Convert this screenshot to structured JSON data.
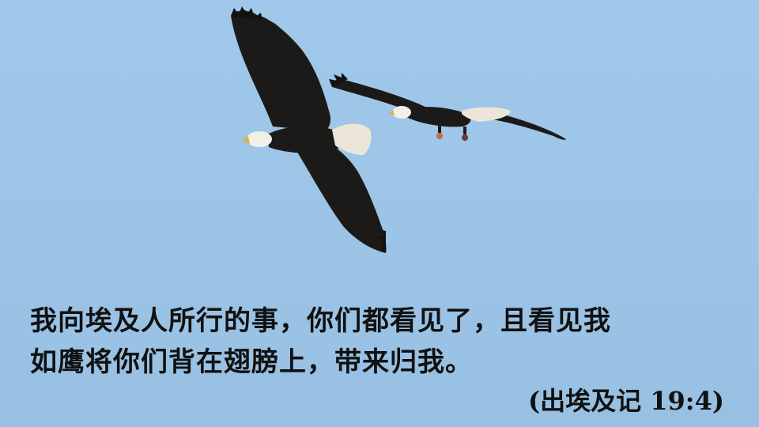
{
  "scene": {
    "sky_color": "#9ec6e8",
    "eagle_body_color": "#1c1a18",
    "eagle_head_color": "#f2efe6",
    "eagle_beak_color": "#e0b040",
    "eagle_tail_color": "#ece6d8"
  },
  "verse": {
    "line1": "我向埃及人所行的事，你们都看见了，且看见我",
    "line2": "如鹰将你们背在翅膀上，带来归我。",
    "reference": "(出埃及记 19:4)"
  }
}
